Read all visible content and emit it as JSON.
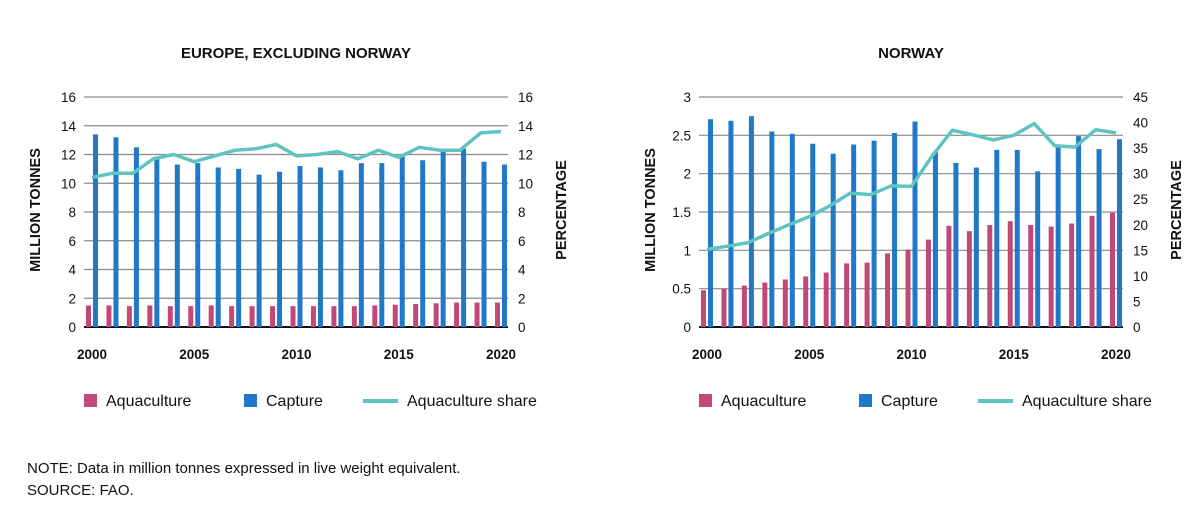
{
  "chart_data": [
    {
      "type": "bar",
      "title": "EUROPE, EXCLUDING NORWAY",
      "ylabel": "MILLION TONNES",
      "y2label": "PERCENTAGE",
      "x": [
        2000,
        2001,
        2002,
        2003,
        2004,
        2005,
        2006,
        2007,
        2008,
        2009,
        2010,
        2011,
        2012,
        2013,
        2014,
        2015,
        2016,
        2017,
        2018,
        2019,
        2020
      ],
      "xticks": [
        "2000",
        "2005",
        "2010",
        "2015",
        "2020"
      ],
      "ylim": [
        0,
        16
      ],
      "yticks": [
        "0",
        "2",
        "4",
        "6",
        "8",
        "10",
        "12",
        "14",
        "16"
      ],
      "y2lim": [
        0,
        16
      ],
      "y2ticks": [
        "0",
        "2",
        "4",
        "6",
        "8",
        "10",
        "12",
        "14",
        "16"
      ],
      "grid": true,
      "series": [
        {
          "name": "Aquaculture",
          "kind": "bar",
          "color": "#c2487a",
          "values": [
            1.5,
            1.5,
            1.45,
            1.5,
            1.45,
            1.45,
            1.5,
            1.45,
            1.45,
            1.45,
            1.45,
            1.45,
            1.45,
            1.45,
            1.5,
            1.55,
            1.6,
            1.65,
            1.7,
            1.7,
            1.7
          ]
        },
        {
          "name": "Capture",
          "kind": "bar",
          "color": "#1f78c8",
          "values": [
            13.4,
            13.2,
            12.5,
            11.8,
            11.3,
            11.4,
            11.1,
            11.0,
            10.6,
            10.8,
            11.2,
            11.1,
            10.9,
            11.4,
            11.4,
            11.9,
            11.6,
            12.2,
            12.4,
            11.5,
            11.3
          ]
        },
        {
          "name": "Aquaculture share",
          "kind": "line",
          "axis": "right",
          "color": "#5fc4c0",
          "values": [
            10.4,
            10.7,
            10.7,
            11.7,
            12.0,
            11.5,
            11.9,
            12.3,
            12.4,
            12.7,
            11.9,
            12.0,
            12.2,
            11.7,
            12.3,
            11.8,
            12.5,
            12.3,
            12.3,
            13.5,
            13.6
          ]
        }
      ]
    },
    {
      "type": "bar",
      "title": "NORWAY",
      "ylabel": "MILLION TONNES",
      "y2label": "PERCENTAGE",
      "x": [
        2000,
        2001,
        2002,
        2003,
        2004,
        2005,
        2006,
        2007,
        2008,
        2009,
        2010,
        2011,
        2012,
        2013,
        2014,
        2015,
        2016,
        2017,
        2018,
        2019,
        2020
      ],
      "xticks": [
        "2000",
        "2005",
        "2010",
        "2015",
        "2020"
      ],
      "ylim": [
        0,
        3
      ],
      "yticks": [
        "0",
        "0.5",
        "1",
        "1.5",
        "2",
        "2.5",
        "3"
      ],
      "y2lim": [
        0,
        45
      ],
      "y2ticks": [
        "0",
        "5",
        "10",
        "15",
        "20",
        "25",
        "30",
        "35",
        "40",
        "45"
      ],
      "grid": true,
      "series": [
        {
          "name": "Aquaculture",
          "kind": "bar",
          "color": "#c2487a",
          "values": [
            0.48,
            0.5,
            0.54,
            0.58,
            0.62,
            0.66,
            0.71,
            0.83,
            0.84,
            0.96,
            1.01,
            1.14,
            1.32,
            1.25,
            1.33,
            1.38,
            1.33,
            1.31,
            1.35,
            1.45,
            1.49
          ]
        },
        {
          "name": "Capture",
          "kind": "bar",
          "color": "#1f78c8",
          "values": [
            2.71,
            2.69,
            2.75,
            2.55,
            2.52,
            2.39,
            2.26,
            2.38,
            2.43,
            2.53,
            2.68,
            2.28,
            2.14,
            2.08,
            2.31,
            2.31,
            2.03,
            2.38,
            2.49,
            2.32,
            2.45
          ]
        },
        {
          "name": "Aquaculture share",
          "kind": "line",
          "axis": "right",
          "color": "#5fc4c0",
          "values": [
            15.2,
            15.8,
            16.5,
            18.3,
            20.0,
            21.6,
            23.7,
            26.2,
            25.9,
            27.6,
            27.5,
            33.4,
            38.5,
            37.6,
            36.6,
            37.5,
            39.8,
            35.5,
            35.2,
            38.6,
            38.0
          ]
        }
      ]
    }
  ],
  "notes": {
    "note": "NOTE: Data in million tonnes expressed in live weight equivalent.",
    "source": "SOURCE: FAO."
  }
}
